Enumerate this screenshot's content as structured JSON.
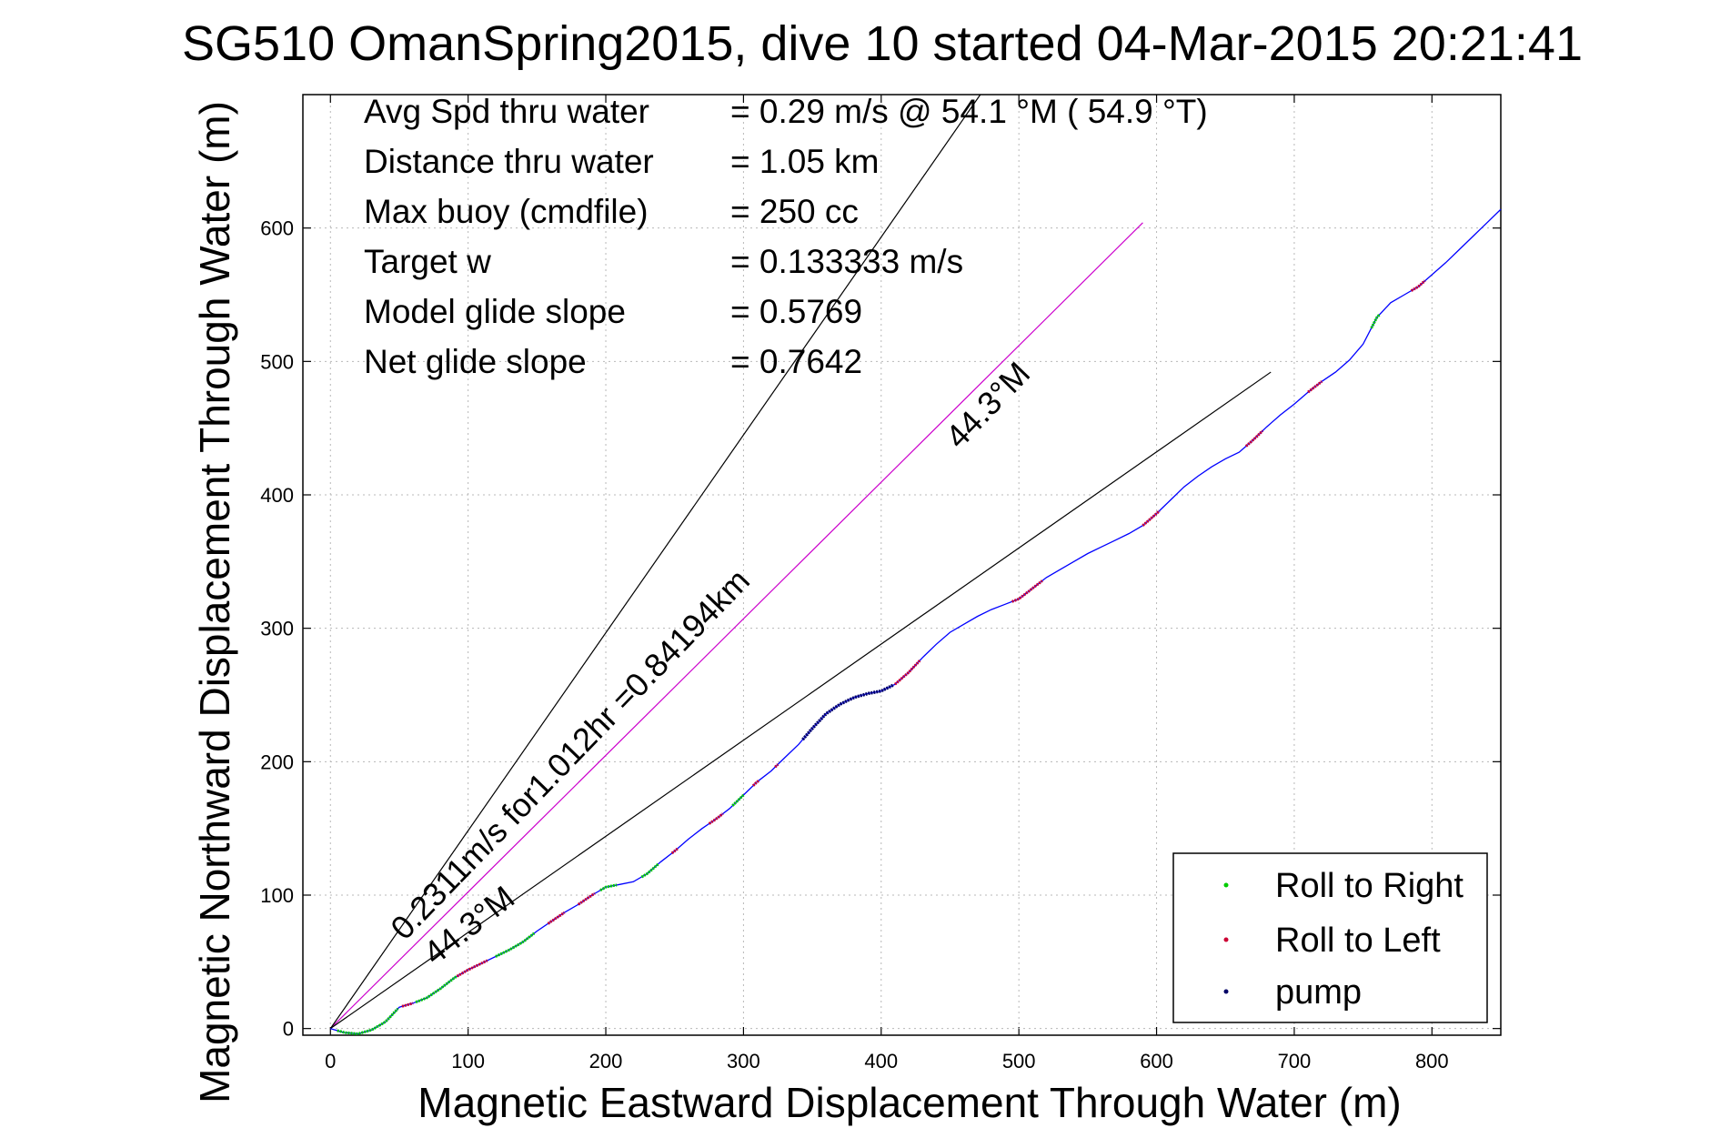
{
  "chart_data": {
    "type": "line",
    "title": "SG510 OmanSpring2015, dive 10 started 04-Mar-2015 20:21:41",
    "xlabel": "Magnetic Eastward Displacement Through Water (m)",
    "ylabel": "Magnetic Northward Displacement Through Water (m)",
    "xlim": [
      -20,
      850
    ],
    "ylim": [
      -5,
      700
    ],
    "xticks": [
      0,
      100,
      200,
      300,
      400,
      500,
      600,
      700,
      800
    ],
    "yticks": [
      0,
      100,
      200,
      300,
      400,
      500,
      600
    ],
    "grid": true,
    "legend_position": "bottom-right",
    "legend": [
      {
        "label": "Roll to Right",
        "color": "#00cc00"
      },
      {
        "label": "Roll to Left",
        "color": "#cc0033"
      },
      {
        "label": "pump",
        "color": "#000066"
      }
    ],
    "info": [
      {
        "label": "Avg Spd thru water",
        "value": "=  0.29 m/s @  54.1 °M ( 54.9 °T)"
      },
      {
        "label": "Distance thru water",
        "value": "=  1.05 km"
      },
      {
        "label": "Max buoy (cmdfile)",
        "value": "= 250 cc"
      },
      {
        "label": "Target w",
        "value": "= 0.133333 m/s"
      },
      {
        "label": "Model glide slope",
        "value": "= 0.5769"
      },
      {
        "label": "Net glide slope",
        "value": "= 0.7642"
      }
    ],
    "annotations": {
      "current_text": "0.2311m/s for1.012hr =0.84194km",
      "heading_upper": "44.3°M",
      "heading_lower": "44.3°M"
    },
    "series": [
      {
        "name": "track",
        "color": "#0000ff",
        "x": [
          0,
          10,
          20,
          30,
          40,
          50,
          60,
          70,
          80,
          90,
          100,
          110,
          120,
          130,
          140,
          150,
          160,
          170,
          180,
          190,
          200,
          210,
          220,
          230,
          240,
          250,
          260,
          270,
          280,
          290,
          300,
          310,
          320,
          330,
          340,
          350,
          360,
          370,
          380,
          390,
          400,
          410,
          420,
          430,
          440,
          450,
          460,
          470,
          480,
          490,
          500,
          510,
          520,
          530,
          540,
          550,
          560,
          570,
          580,
          590,
          600,
          610,
          620,
          630,
          640,
          650,
          660,
          670,
          680,
          690,
          700,
          710,
          720,
          730,
          740,
          750,
          760,
          770,
          780,
          790,
          800,
          810,
          820,
          830,
          840,
          850
        ],
        "y": [
          0,
          -3,
          -4,
          -1,
          5,
          16,
          19,
          23,
          30,
          38,
          44,
          49,
          54,
          59,
          65,
          73,
          80,
          87,
          93,
          100,
          106,
          108,
          110,
          116,
          125,
          133,
          142,
          150,
          157,
          165,
          175,
          185,
          193,
          203,
          213,
          225,
          236,
          243,
          248,
          251,
          253,
          258,
          267,
          278,
          288,
          297,
          303,
          309,
          314,
          318,
          322,
          330,
          338,
          344,
          350,
          356,
          361,
          366,
          371,
          377,
          386,
          396,
          406,
          414,
          421,
          427,
          432,
          441,
          451,
          460,
          468,
          477,
          485,
          492,
          501,
          513,
          533,
          544,
          550,
          556,
          565,
          574,
          584,
          594,
          604,
          614
        ]
      }
    ],
    "reference_lines": [
      {
        "color": "#cc00cc",
        "x": [
          0,
          590
        ],
        "y": [
          0,
          604
        ]
      },
      {
        "color": "#000000",
        "x": [
          0,
          472
        ],
        "y": [
          0,
          700
        ]
      },
      {
        "color": "#000000",
        "x": [
          0,
          683
        ],
        "y": [
          0,
          492
        ]
      }
    ],
    "markers": {
      "roll_right_color": "#00cc00",
      "roll_left_color": "#cc0033",
      "pump_color": "#000066",
      "roll_right_x": [
        [
          5,
          50
        ],
        [
          62,
          92
        ],
        [
          120,
          148
        ],
        [
          196,
          208
        ],
        [
          226,
          238
        ],
        [
          292,
          300
        ],
        [
          756,
          762
        ]
      ],
      "roll_left_x": [
        [
          52,
          60
        ],
        [
          92,
          115
        ],
        [
          158,
          170
        ],
        [
          180,
          192
        ],
        [
          248,
          252
        ],
        [
          275,
          285
        ],
        [
          307,
          312
        ],
        [
          323,
          326
        ],
        [
          410,
          428
        ],
        [
          495,
          518
        ],
        [
          590,
          602
        ],
        [
          665,
          678
        ],
        [
          710,
          720
        ],
        [
          785,
          795
        ]
      ],
      "pump_x": [
        [
          343,
          410
        ]
      ]
    }
  }
}
